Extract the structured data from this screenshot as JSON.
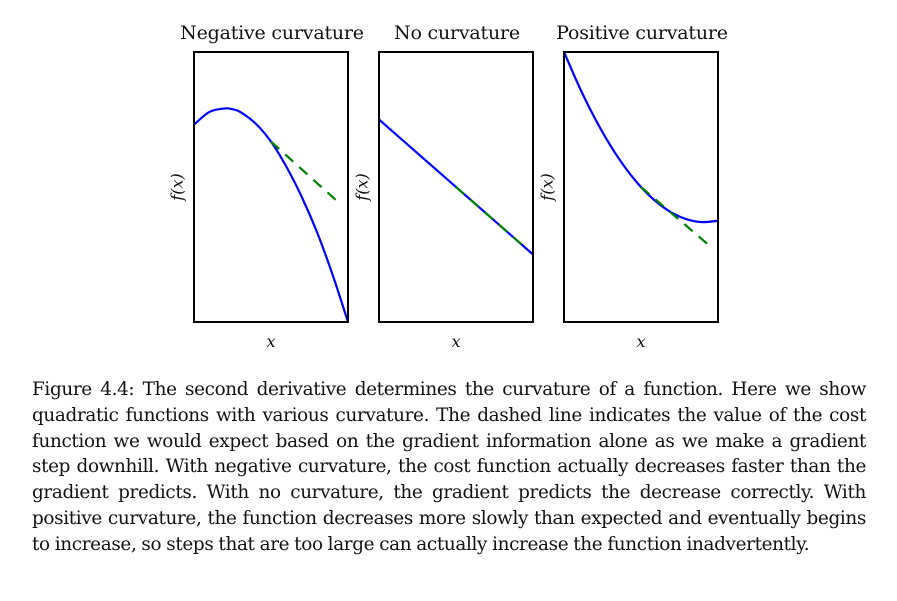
{
  "chart_data": [
    {
      "type": "line",
      "title": "Negative curvature",
      "xlabel": "x",
      "ylabel": "f(x)",
      "curvature": "negative",
      "function": "quadratic, concave down",
      "series": [
        {
          "name": "f(x)",
          "color": "#0000ff",
          "style": "solid",
          "x": [
            0.0,
            0.1,
            0.2,
            0.25,
            0.3,
            0.4,
            0.5,
            0.6,
            0.7,
            0.8,
            0.9,
            1.0
          ],
          "y": [
            0.506,
            0.553,
            0.566,
            0.563,
            0.553,
            0.51,
            0.443,
            0.35,
            0.238,
            0.106,
            -0.05,
            -0.225
          ]
        },
        {
          "name": "gradient prediction",
          "color": "#008000",
          "style": "dashed",
          "x": [
            0.5,
            0.95
          ],
          "y": [
            0.443,
            0.212
          ]
        }
      ],
      "xlim": [
        0,
        1
      ],
      "ylim": [
        -0.225,
        0.775
      ]
    },
    {
      "type": "line",
      "title": "No curvature",
      "xlabel": "x",
      "ylabel": "f(x)",
      "curvature": "none",
      "function": "linear",
      "series": [
        {
          "name": "f(x)",
          "color": "#0000ff",
          "style": "solid",
          "x": [
            0.0,
            1.0
          ],
          "y": [
            0.75,
            0.25
          ]
        },
        {
          "name": "gradient prediction",
          "color": "#008000",
          "style": "dashed",
          "x": [
            0.5,
            0.95
          ],
          "y": [
            0.5,
            0.275
          ]
        }
      ],
      "xlim": [
        0,
        1
      ],
      "ylim": [
        0,
        1
      ]
    },
    {
      "type": "line",
      "title": "Positive curvature",
      "xlabel": "x",
      "ylabel": "f(x)",
      "curvature": "positive",
      "function": "quadratic, concave up",
      "series": [
        {
          "name": "f(x)",
          "color": "#0000ff",
          "style": "solid",
          "x": [
            0.0,
            0.1,
            0.2,
            0.3,
            0.4,
            0.5,
            0.6,
            0.7,
            0.8,
            0.9,
            1.0
          ],
          "y": [
            1.0,
            0.87,
            0.755,
            0.655,
            0.57,
            0.5,
            0.445,
            0.405,
            0.38,
            0.37,
            0.375
          ]
        },
        {
          "name": "gradient prediction",
          "color": "#008000",
          "style": "dashed",
          "x": [
            0.5,
            0.95
          ],
          "y": [
            0.5,
            0.28
          ]
        }
      ],
      "xlim": [
        0,
        1
      ],
      "ylim": [
        0,
        1
      ]
    }
  ],
  "figure": {
    "panels": [
      {
        "title": "Negative curvature",
        "xlabel": "x",
        "ylabel": "f(x)"
      },
      {
        "title": "No curvature",
        "xlabel": "x",
        "ylabel": "f(x)"
      },
      {
        "title": "Positive curvature",
        "xlabel": "x",
        "ylabel": "f(x)"
      }
    ],
    "colors": {
      "function": "#0000ff",
      "prediction": "#008000",
      "frame": "#000000"
    }
  },
  "caption": "Figure 4.4: The second derivative determines the curvature of a function. Here we show quadratic functions with various curvature. The dashed line indicates the value of the cost function we would expect based on the gradient information alone as we make a gradient step downhill. With negative curvature, the cost function actually decreases faster than the gradient predicts. With no curvature, the gradient predicts the decrease correctly. With positive curvature, the function decreases more slowly than expected and eventually begins to increase, so steps that are too large can actually increase the function inadvertently."
}
